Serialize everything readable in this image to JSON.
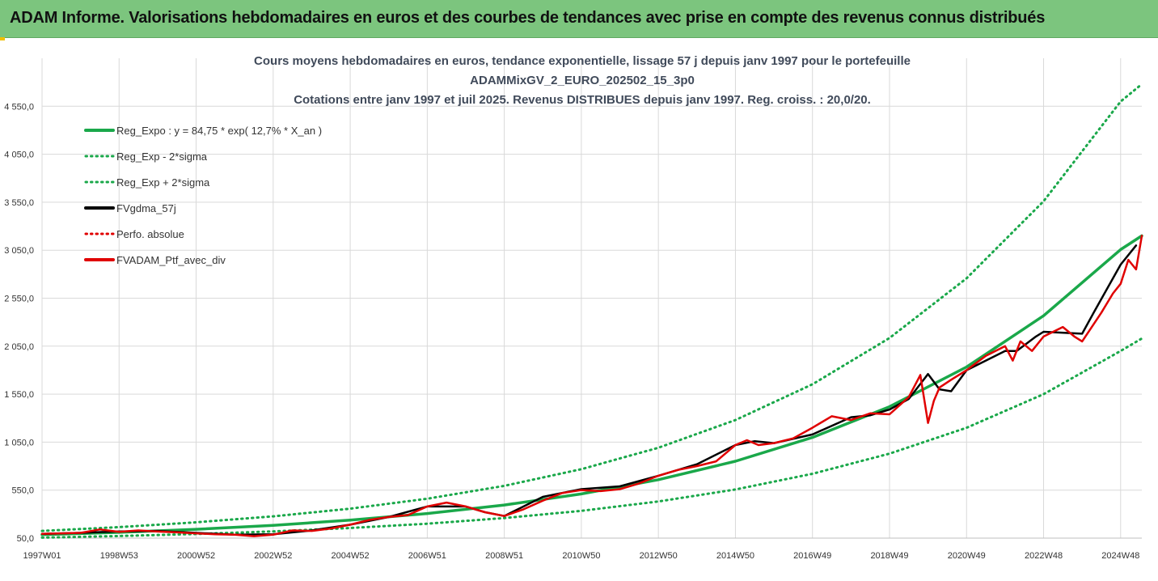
{
  "banner": {
    "title": "ADAM Informe. Valorisations hebdomadaires en euros et des courbes de tendances avec prise en compte des revenus connus distribués"
  },
  "colors": {
    "banner_bg": "#7cc57e",
    "trend_green": "#1aa84a",
    "black": "#000000",
    "red": "#e00000",
    "grid": "#d9d9d9"
  },
  "chart_data": {
    "type": "line",
    "title_lines": [
      "Cours moyens hebdomadaires  en euros, tendance exponentielle, lissage 57 j depuis janv 1997 pour le portefeuille",
      "ADAMMixGV_2_EURO_202502_15_3p0",
      "Cotations  entre janv 1997 et juil 2025. Revenus DISTRIBUES depuis janv 1997. Reg. croiss. : 20,0/20."
    ],
    "x_tick_labels": [
      "1997W01",
      "1998W53",
      "2000W52",
      "2002W52",
      "2004W52",
      "2006W51",
      "2008W51",
      "2010W50",
      "2012W50",
      "2014W50",
      "2016W49",
      "2018W49",
      "2020W49",
      "2022W48",
      "2024W48"
    ],
    "x_tick_years": [
      1997,
      1999,
      2001,
      2003,
      2005,
      2007,
      2009,
      2011,
      2013,
      2015,
      2017,
      2019,
      2021,
      2023,
      2025
    ],
    "x_range": [
      1997.0,
      2025.55
    ],
    "y_tick_labels": [
      "50,0",
      "550,0",
      "1 050,0",
      "1 550,0",
      "2 050,0",
      "2 550,0",
      "3 050,0",
      "3 550,0",
      "4 050,0",
      "4 550,0"
    ],
    "y_ticks": [
      50,
      550,
      1050,
      1550,
      2050,
      2550,
      3050,
      3550,
      4050,
      4550
    ],
    "ylim": [
      50,
      5050
    ],
    "grid": true,
    "legend_position": "top-left",
    "legend": [
      {
        "label": "Reg_Expo : y = 84,75 * exp( 12,7% *  X_an )",
        "color": "#1aa84a",
        "style": "solid"
      },
      {
        "label": "Reg_Exp - 2*sigma",
        "color": "#1aa84a",
        "style": "dotted"
      },
      {
        "label": "Reg_Exp + 2*sigma",
        "color": "#1aa84a",
        "style": "dotted"
      },
      {
        "label": "FVgdma_57j",
        "color": "#000000",
        "style": "solid"
      },
      {
        "label": "Perfo. absolue",
        "color": "#e00000",
        "style": "dotted"
      },
      {
        "label": "FVADAM_Ptf_avec_div",
        "color": "#e00000",
        "style": "solid"
      }
    ],
    "series": [
      {
        "name": "Reg_Expo : y = 84,75 * exp( 12,7% *  X_an )",
        "x": [
          1997,
          1999,
          2001,
          2003,
          2005,
          2007,
          2009,
          2011,
          2013,
          2015,
          2017,
          2019,
          2021,
          2023,
          2025,
          2025.55
        ],
        "values": [
          85,
          110,
          142,
          183,
          237,
          306,
          395,
          510,
          659,
          851,
          1099,
          1419,
          1833,
          2367,
          3057,
          3200
        ]
      },
      {
        "name": "Reg_Exp - 2*sigma",
        "x": [
          1997,
          1999,
          2001,
          2003,
          2005,
          2007,
          2009,
          2011,
          2013,
          2015,
          2017,
          2019,
          2021,
          2023,
          2025,
          2025.55
        ],
        "values": [
          55,
          72,
          93,
          120,
          155,
          200,
          259,
          334,
          432,
          557,
          720,
          930,
          1200,
          1550,
          2000,
          2130
        ]
      },
      {
        "name": "Reg_Exp + 2*sigma",
        "x": [
          1997,
          1999,
          2001,
          2003,
          2005,
          2007,
          2009,
          2011,
          2013,
          2015,
          2017,
          2019,
          2021,
          2023,
          2025,
          2025.55
        ],
        "values": [
          125,
          165,
          214,
          277,
          357,
          461,
          595,
          768,
          992,
          1280,
          1653,
          2135,
          2757,
          3560,
          4600,
          4780
        ]
      },
      {
        "name": "FVgdma_57j",
        "x": [
          1997,
          1998,
          1999,
          2000,
          2001,
          2002,
          2003,
          2004,
          2005,
          2006,
          2007,
          2008,
          2008.5,
          2009,
          2009.5,
          2010,
          2011,
          2012,
          2013,
          2014,
          2015,
          2015.5,
          2016,
          2017,
          2018,
          2018.5,
          2019,
          2019.5,
          2020,
          2020.3,
          2020.6,
          2021,
          2022,
          2022.3,
          2022.8,
          2023,
          2024,
          2024.3,
          2025,
          2025.4
        ],
        "values": [
          95,
          105,
          120,
          125,
          105,
          85,
          90,
          130,
          190,
          270,
          380,
          380,
          320,
          280,
          380,
          480,
          560,
          590,
          700,
          820,
          1020,
          1060,
          1040,
          1130,
          1310,
          1330,
          1390,
          1500,
          1760,
          1600,
          1580,
          1800,
          2000,
          2000,
          2150,
          2200,
          2180,
          2400,
          2900,
          3100
        ]
      },
      {
        "name": "FVADAM_Ptf_avec_div",
        "x": [
          1997,
          1997.5,
          1998,
          1998.5,
          1999,
          1999.5,
          2000,
          2000.5,
          2001,
          2001.5,
          2002,
          2002.5,
          2003,
          2003.5,
          2004,
          2004.5,
          2005,
          2005.5,
          2006,
          2006.5,
          2007,
          2007.5,
          2008,
          2008.5,
          2009,
          2009.5,
          2010,
          2010.5,
          2011,
          2011.5,
          2012,
          2012.5,
          2013,
          2013.5,
          2014,
          2014.5,
          2015,
          2015.3,
          2015.6,
          2016,
          2016.5,
          2017,
          2017.5,
          2018,
          2018.5,
          2019,
          2019.5,
          2019.8,
          2020,
          2020.15,
          2020.3,
          2020.6,
          2021,
          2021.5,
          2022,
          2022.2,
          2022.4,
          2022.7,
          2023,
          2023.5,
          2023.8,
          2024,
          2024.5,
          2024.8,
          2025,
          2025.2,
          2025.4,
          2025.55
        ],
        "values": [
          95,
          100,
          105,
          140,
          115,
          130,
          118,
          110,
          100,
          90,
          85,
          70,
          85,
          130,
          125,
          150,
          190,
          240,
          270,
          290,
          380,
          420,
          380,
          320,
          280,
          350,
          440,
          520,
          550,
          540,
          560,
          620,
          700,
          760,
          800,
          850,
          1020,
          1070,
          1020,
          1040,
          1090,
          1200,
          1320,
          1280,
          1350,
          1340,
          1520,
          1750,
          1250,
          1480,
          1620,
          1700,
          1800,
          1950,
          2050,
          1900,
          2100,
          2000,
          2150,
          2250,
          2150,
          2100,
          2400,
          2600,
          2700,
          2950,
          2850,
          3200
        ]
      }
    ]
  }
}
